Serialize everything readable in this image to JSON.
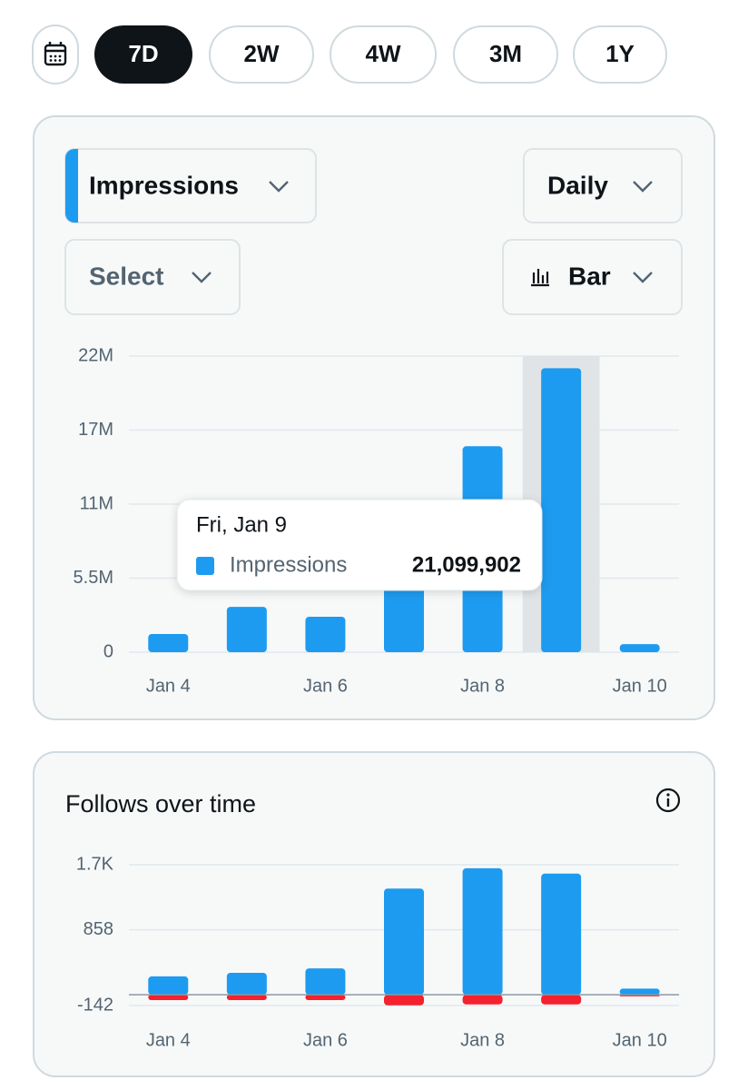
{
  "toolbar": {
    "ranges": [
      "7D",
      "2W",
      "4W",
      "3M",
      "1Y"
    ]
  },
  "controls": {
    "metric": "Impressions",
    "interval": "Daily",
    "compare": "Select",
    "chart_style": "Bar"
  },
  "chart_data": [
    {
      "type": "bar",
      "categories": [
        "Jan 4",
        null,
        "Jan 6",
        null,
        "Jan 8",
        null,
        "Jan 10"
      ],
      "series": [
        {
          "name": "Impressions",
          "color": "#1d9bf0",
          "values": [
            1350000,
            3370000,
            2630000,
            7500000,
            15300000,
            21099902,
            600000
          ],
          "value_labels": [
            null,
            null,
            null,
            null,
            null,
            "21,099,902",
            null
          ]
        }
      ],
      "ylim": [
        0,
        22000000
      ],
      "yticks": [
        0,
        {
          "value": 5500000,
          "label": "5.5M"
        },
        {
          "value": 11000000,
          "label": "11M"
        },
        {
          "value": 16500000,
          "label": "17M"
        },
        {
          "value": 22000000,
          "label": "22M"
        }
      ],
      "grid": true,
      "highlight": 5,
      "tooltip": {
        "title": "Fri, Jan 9"
      }
    },
    {
      "type": "bar",
      "title": "Follows over time",
      "categories": [
        "Jan 4",
        null,
        "Jan 6",
        null,
        "Jan 8",
        null,
        "Jan 10"
      ],
      "series": [
        {
          "color": "#1d9bf0",
          "values": [
            243,
            290,
            348,
            1402,
            1669,
            1599,
            81
          ]
        },
        {
          "color": "#f4212e",
          "values": [
            -70,
            -70,
            -70,
            -139,
            -127,
            -127,
            -20
          ]
        }
      ],
      "ylim": [
        -142,
        1716
      ],
      "yticks": [
        -142,
        858,
        {
          "value": 1716,
          "label": "1.7K"
        }
      ],
      "grid": true
    }
  ]
}
